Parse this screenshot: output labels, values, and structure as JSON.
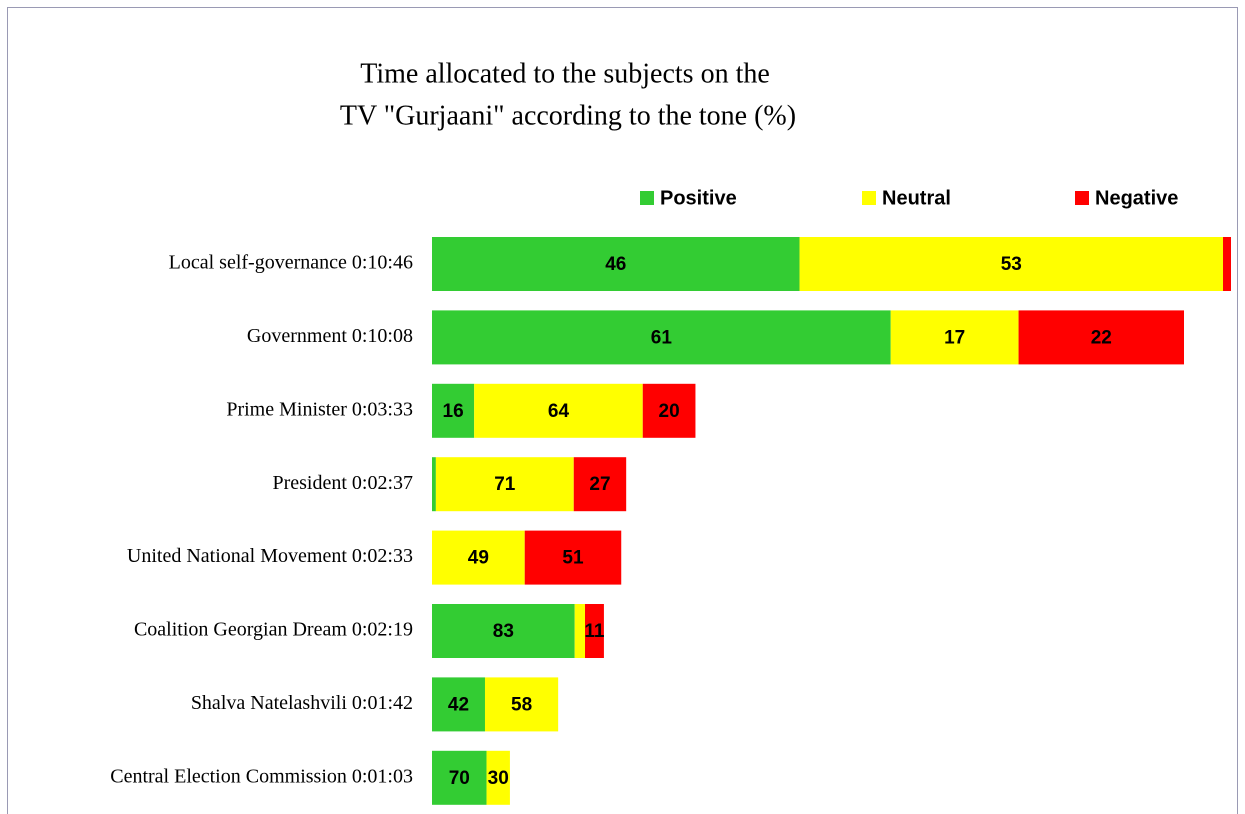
{
  "chart_data": {
    "type": "stacked-bar-horizontal",
    "title": [
      "Time allocated to the subjects on the",
      "TV \"Gurjaani\" according to the tone (%)"
    ],
    "categories": [
      "Local self-governance 0:10:46",
      "Government 0:10:08",
      "Prime Minister 0:03:33",
      "President 0:02:37",
      "United National Movement 0:02:33",
      "Coalition Georgian Dream 0:02:19",
      "Shalva Natelashvili 0:01:42",
      "Central Election Commission 0:01:03"
    ],
    "series": [
      {
        "name": "Positive",
        "color": "#33cc33",
        "values": [
          46,
          61,
          16,
          2,
          0,
          83,
          42,
          70
        ]
      },
      {
        "name": "Neutral",
        "color": "#ffff00",
        "values": [
          53,
          17,
          64,
          71,
          49,
          6,
          58,
          30
        ]
      },
      {
        "name": "Negative",
        "color": "#ff0000",
        "values": [
          1,
          22,
          20,
          27,
          51,
          11,
          0,
          0
        ]
      }
    ],
    "legend": "top-right"
  }
}
